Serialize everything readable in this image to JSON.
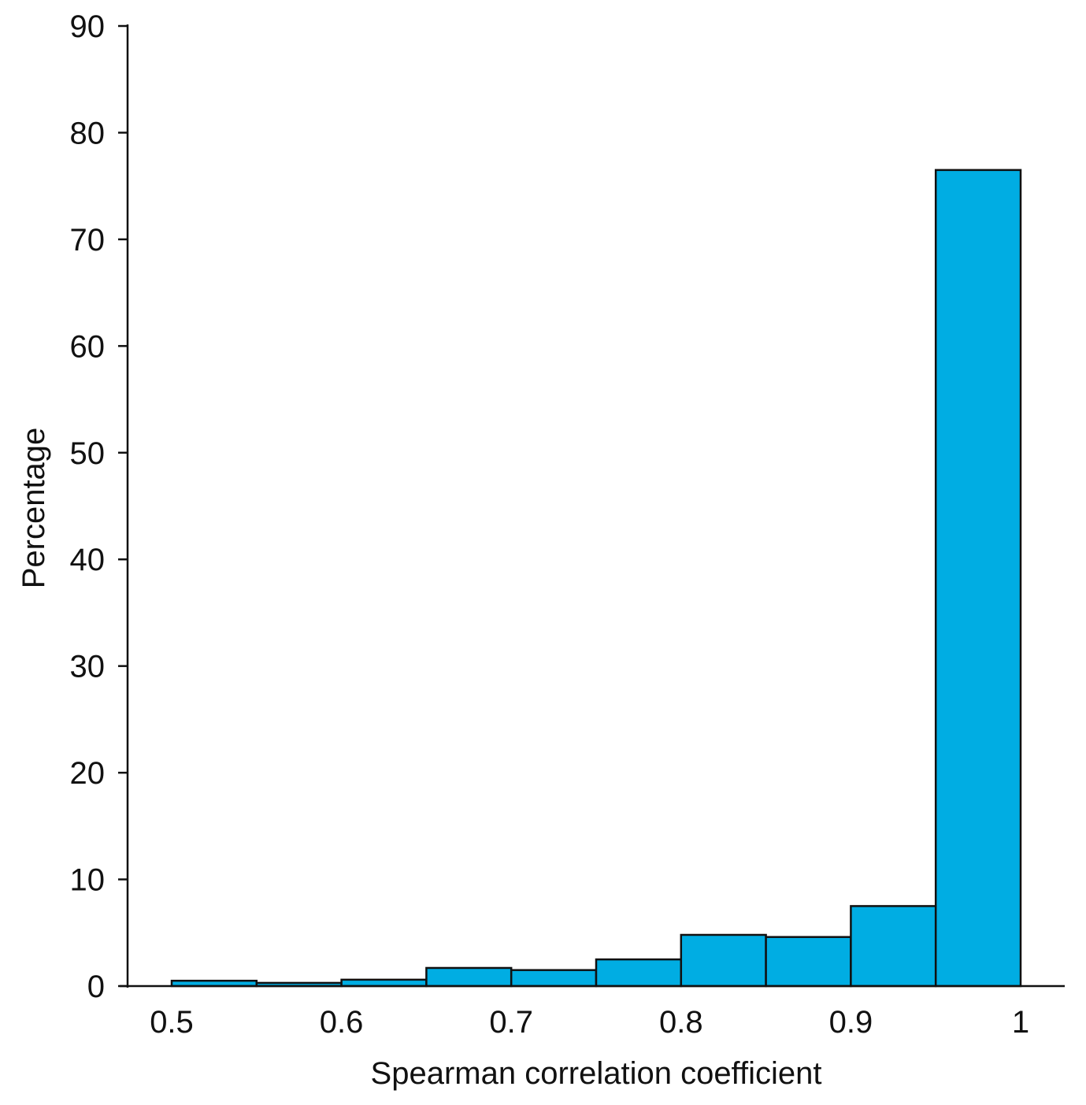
{
  "chart_data": {
    "type": "bar",
    "subtype": "histogram",
    "bins": [
      {
        "start": 0.5,
        "end": 0.55,
        "value": 0.5
      },
      {
        "start": 0.55,
        "end": 0.6,
        "value": 0.3
      },
      {
        "start": 0.6,
        "end": 0.65,
        "value": 0.6
      },
      {
        "start": 0.65,
        "end": 0.7,
        "value": 1.7
      },
      {
        "start": 0.7,
        "end": 0.75,
        "value": 1.5
      },
      {
        "start": 0.75,
        "end": 0.8,
        "value": 2.5
      },
      {
        "start": 0.8,
        "end": 0.85,
        "value": 4.8
      },
      {
        "start": 0.85,
        "end": 0.9,
        "value": 4.6
      },
      {
        "start": 0.9,
        "end": 0.95,
        "value": 7.5
      },
      {
        "start": 0.95,
        "end": 1.0,
        "value": 76.5
      }
    ],
    "xlabel": "Spearman correlation coefficient",
    "ylabel": "Percentage",
    "xlim": [
      0.5,
      1.0
    ],
    "ylim": [
      0,
      90
    ],
    "xticks": [
      0.5,
      0.6,
      0.7,
      0.8,
      0.9,
      1.0
    ],
    "xtick_labels": [
      "0.5",
      "0.6",
      "0.7",
      "0.8",
      "0.9",
      "1"
    ],
    "yticks": [
      0,
      10,
      20,
      30,
      40,
      50,
      60,
      70,
      80,
      90
    ],
    "ytick_labels": [
      "0",
      "10",
      "20",
      "30",
      "40",
      "50",
      "60",
      "70",
      "80",
      "90"
    ],
    "bar_color": "#00ADE3",
    "edge_color": "#111111",
    "grid": false,
    "legend": "none"
  }
}
